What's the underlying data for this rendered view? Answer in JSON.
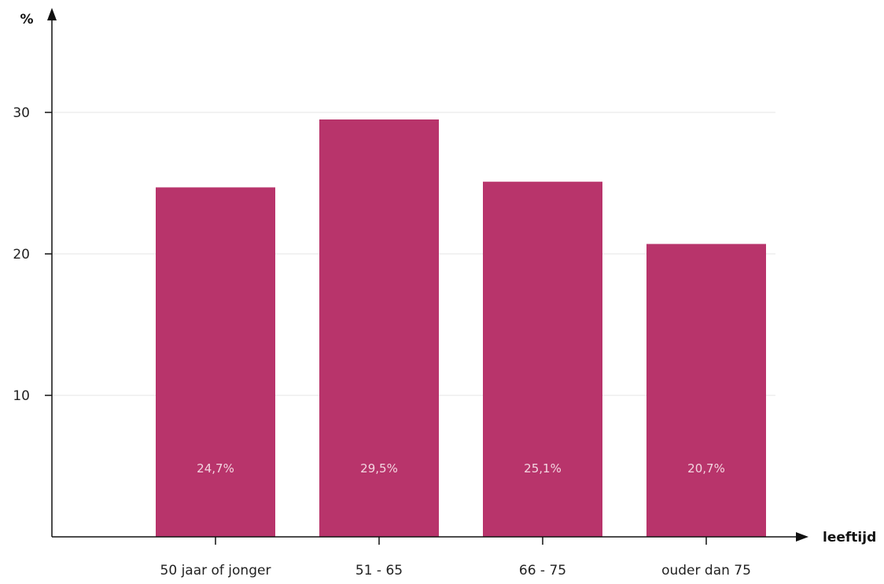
{
  "chart_data": {
    "type": "bar",
    "categories": [
      "50 jaar of jonger",
      "51 - 65",
      "66 - 75",
      "ouder dan 75"
    ],
    "values": [
      24.7,
      29.5,
      25.1,
      20.7
    ],
    "data_labels": [
      "24,7%",
      "29,5%",
      "25,1%",
      "20,7%"
    ],
    "ylabel": "%",
    "xlabel": "leeftijd",
    "ylim": [
      0,
      30
    ],
    "yticks": [
      10,
      20,
      30
    ],
    "ytick_labels": [
      "10",
      "20",
      "30"
    ],
    "grid": true,
    "legend": "none"
  },
  "colors": {
    "bar": "#b8346b",
    "grid": "#e6e6e6",
    "axis": "#111111"
  }
}
